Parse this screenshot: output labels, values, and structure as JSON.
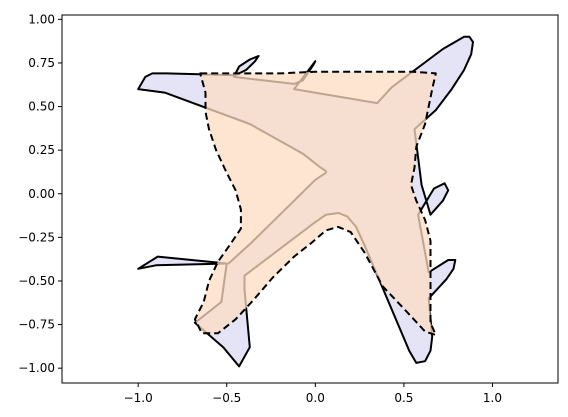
{
  "chart_data": {
    "type": "area",
    "title": "",
    "xlabel": "",
    "ylabel": "",
    "xlim": [
      -1.43,
      1.37
    ],
    "ylim": [
      -1.085,
      1.025
    ],
    "grid": false,
    "x_ticks": [
      -1.0,
      -0.5,
      0.0,
      0.5,
      1.0
    ],
    "x_tick_labels": [
      "−1.0",
      "−0.5",
      "0.0",
      "0.5",
      "1.0"
    ],
    "y_ticks": [
      1.0,
      0.75,
      0.5,
      0.25,
      0.0,
      -0.25,
      -0.5,
      -0.75,
      -1.0
    ],
    "y_tick_labels": [
      "1.00",
      "0.75",
      "0.50",
      "0.25",
      "0.00",
      "−0.25",
      "−0.50",
      "−0.75",
      "−1.00"
    ],
    "series": [
      {
        "shape": "airplane",
        "fill": "#e4e4f6",
        "edge": "#000000",
        "line_style": "solid",
        "points": [
          [
            0.84,
            0.9
          ],
          [
            0.87,
            0.9
          ],
          [
            0.89,
            0.87
          ],
          [
            0.88,
            0.8
          ],
          [
            0.84,
            0.71
          ],
          [
            0.77,
            0.6
          ],
          [
            0.68,
            0.48
          ],
          [
            0.56,
            0.37
          ],
          [
            0.6,
            0.05
          ],
          [
            0.65,
            -0.12
          ],
          [
            0.72,
            -0.04
          ],
          [
            0.75,
            0.02
          ],
          [
            0.73,
            0.06
          ],
          [
            0.67,
            0.03
          ],
          [
            0.58,
            -0.12
          ],
          [
            0.64,
            -0.45
          ],
          [
            0.75,
            -0.38
          ],
          [
            0.79,
            -0.38
          ],
          [
            0.78,
            -0.43
          ],
          [
            0.74,
            -0.49
          ],
          [
            0.64,
            -0.6
          ],
          [
            0.66,
            -0.82
          ],
          [
            0.65,
            -0.9
          ],
          [
            0.62,
            -0.96
          ],
          [
            0.57,
            -0.97
          ],
          [
            0.53,
            -0.9
          ],
          [
            0.28,
            -0.3
          ],
          [
            0.23,
            -0.19
          ],
          [
            0.18,
            -0.13
          ],
          [
            0.13,
            -0.11
          ],
          [
            0.06,
            -0.12
          ],
          [
            -0.01,
            -0.17
          ],
          [
            -0.4,
            -0.47
          ],
          [
            -0.4,
            -0.55
          ],
          [
            -0.37,
            -0.88
          ],
          [
            -0.43,
            -0.99
          ],
          [
            -0.52,
            -0.88
          ],
          [
            -0.68,
            -0.74
          ],
          [
            -0.53,
            -0.62
          ],
          [
            -0.5,
            -0.4
          ],
          [
            -0.89,
            -0.36
          ],
          [
            -1.0,
            -0.43
          ],
          [
            -0.9,
            -0.41
          ],
          [
            -0.49,
            -0.4
          ],
          [
            -0.36,
            -0.28
          ],
          [
            0.0,
            0.08
          ],
          [
            0.06,
            0.12
          ],
          [
            0.06,
            0.13
          ],
          [
            0.03,
            0.15
          ],
          [
            -0.07,
            0.23
          ],
          [
            -0.37,
            0.4
          ],
          [
            -0.85,
            0.58
          ],
          [
            -1.0,
            0.6
          ],
          [
            -0.96,
            0.67
          ],
          [
            -0.92,
            0.69
          ],
          [
            -0.84,
            0.69
          ],
          [
            -0.45,
            0.68
          ],
          [
            -0.39,
            0.71
          ],
          [
            -0.34,
            0.76
          ],
          [
            -0.32,
            0.79
          ],
          [
            -0.37,
            0.77
          ],
          [
            -0.43,
            0.73
          ],
          [
            -0.46,
            0.67
          ],
          [
            -0.12,
            0.63
          ],
          [
            -0.07,
            0.65
          ],
          [
            -0.01,
            0.74
          ],
          [
            0.0,
            0.76
          ],
          [
            -0.03,
            0.72
          ],
          [
            -0.12,
            0.6
          ],
          [
            0.35,
            0.52
          ],
          [
            0.43,
            0.61
          ],
          [
            0.72,
            0.83
          ]
        ]
      },
      {
        "shape": "airplane",
        "fill": "#fcdcc3",
        "edge": "#000000",
        "line_style": "dashed",
        "points": [
          [
            -0.65,
            0.69
          ],
          [
            -0.55,
            0.69
          ],
          [
            -0.45,
            0.69
          ],
          [
            -0.35,
            0.69
          ],
          [
            -0.2,
            0.69
          ],
          [
            0.0,
            0.7
          ],
          [
            0.2,
            0.7
          ],
          [
            0.4,
            0.7
          ],
          [
            0.55,
            0.7
          ],
          [
            0.68,
            0.69
          ],
          [
            0.66,
            0.6
          ],
          [
            0.62,
            0.4
          ],
          [
            0.57,
            0.27
          ],
          [
            0.56,
            0.15
          ],
          [
            0.54,
            0.05
          ],
          [
            0.57,
            -0.04
          ],
          [
            0.62,
            -0.15
          ],
          [
            0.65,
            -0.27
          ],
          [
            0.65,
            -0.4
          ],
          [
            0.65,
            -0.52
          ],
          [
            0.65,
            -0.63
          ],
          [
            0.65,
            -0.74
          ],
          [
            0.68,
            -0.81
          ],
          [
            0.62,
            -0.79
          ],
          [
            0.52,
            -0.68
          ],
          [
            0.38,
            -0.53
          ],
          [
            0.28,
            -0.34
          ],
          [
            0.2,
            -0.22
          ],
          [
            0.13,
            -0.19
          ],
          [
            0.06,
            -0.21
          ],
          [
            -0.02,
            -0.28
          ],
          [
            -0.12,
            -0.36
          ],
          [
            -0.24,
            -0.48
          ],
          [
            -0.35,
            -0.61
          ],
          [
            -0.45,
            -0.72
          ],
          [
            -0.55,
            -0.8
          ],
          [
            -0.64,
            -0.8
          ],
          [
            -0.68,
            -0.72
          ],
          [
            -0.63,
            -0.62
          ],
          [
            -0.6,
            -0.5
          ],
          [
            -0.55,
            -0.39
          ],
          [
            -0.48,
            -0.29
          ],
          [
            -0.42,
            -0.2
          ],
          [
            -0.42,
            -0.09
          ],
          [
            -0.45,
            0.02
          ],
          [
            -0.5,
            0.12
          ],
          [
            -0.56,
            0.25
          ],
          [
            -0.6,
            0.37
          ],
          [
            -0.62,
            0.47
          ],
          [
            -0.62,
            0.58
          ],
          [
            -0.65,
            0.69
          ]
        ]
      }
    ]
  }
}
